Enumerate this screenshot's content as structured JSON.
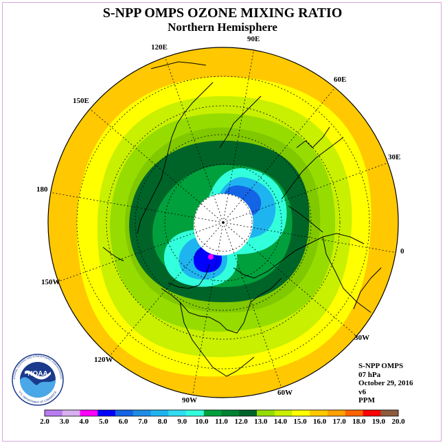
{
  "title": "S-NPP OMPS OZONE MIXING RATIO",
  "subtitle": "Northern Hemisphere",
  "longitude_labels": {
    "lon_90e": "90E",
    "lon_60e": "60E",
    "lon_30e": "30E",
    "lon_0": "0",
    "lon_30w": "30W",
    "lon_60w": "60W",
    "lon_90w": "90W",
    "lon_120w": "120W",
    "lon_150w": "150W",
    "lon_180": "180",
    "lon_150e": "150E",
    "lon_120e": "120E"
  },
  "info": {
    "instrument": "S-NPP OMPS",
    "level": "07 hPa",
    "date": "October 29, 2016",
    "version": "v6",
    "units": "PPM"
  },
  "colorbar": {
    "labels": [
      "2.0",
      "3.0",
      "4.0",
      "5.0",
      "6.0",
      "7.0",
      "8.0",
      "9.0",
      "10.0",
      "11.0",
      "12.0",
      "13.0",
      "14.0",
      "15.0",
      "16.0",
      "17.0",
      "18.0",
      "19.0",
      "20.0"
    ],
    "colors": [
      "#b87cf0",
      "#d8b0f0",
      "#ff00ff",
      "#0000ff",
      "#1464e6",
      "#1e8ce6",
      "#1eb4f0",
      "#32dcf0",
      "#32ffdc",
      "#00a03c",
      "#008232",
      "#006428",
      "#96dc00",
      "#c8f000",
      "#ffff00",
      "#ffc800",
      "#ffa000",
      "#ff6400",
      "#ff0000",
      "#8c5a3c"
    ]
  },
  "logo": {
    "text": "NOAA",
    "ring_text": "NATIONAL OCEANIC AND ATMOSPHERIC ADMINISTRATION",
    "ring_text_bottom": "U.S. DEPARTMENT OF COMMERCE"
  }
}
